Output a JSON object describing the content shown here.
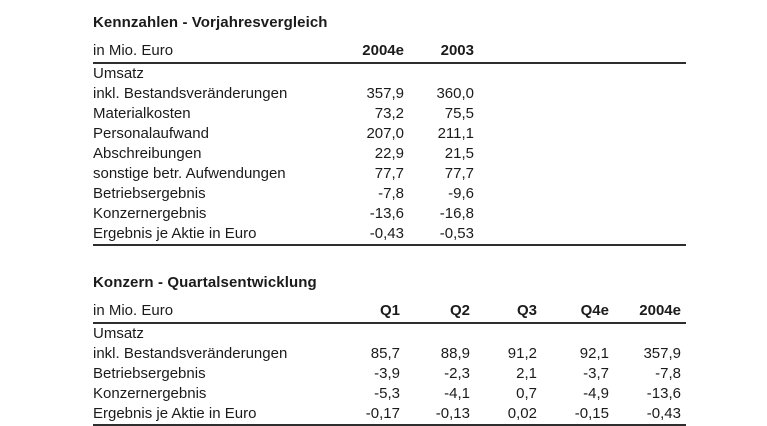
{
  "table1": {
    "title": "Kennzahlen - Vorjahresvergleich",
    "unit_label": "in Mio. Euro",
    "columns": [
      "2004e",
      "2003"
    ],
    "rows": [
      {
        "label": "Umsatz",
        "values": [
          "",
          ""
        ]
      },
      {
        "label": "inkl. Bestandsveränderungen",
        "values": [
          "357,9",
          "360,0"
        ]
      },
      {
        "label": "Materialkosten",
        "values": [
          "73,2",
          "75,5"
        ]
      },
      {
        "label": "Personalaufwand",
        "values": [
          "207,0",
          "211,1"
        ]
      },
      {
        "label": "Abschreibungen",
        "values": [
          "22,9",
          "21,5"
        ]
      },
      {
        "label": "sonstige betr. Aufwendungen",
        "values": [
          "77,7",
          "77,7"
        ]
      },
      {
        "label": "Betriebsergebnis",
        "values": [
          "-7,8",
          "-9,6"
        ]
      },
      {
        "label": "Konzernergebnis",
        "values": [
          "-13,6",
          "-16,8"
        ]
      },
      {
        "label": "Ergebnis je Aktie in Euro",
        "values": [
          "-0,43",
          "-0,53"
        ]
      }
    ]
  },
  "table2": {
    "title": "Konzern - Quartalsentwicklung",
    "unit_label": "in Mio. Euro",
    "columns": [
      "Q1",
      "Q2",
      "Q3",
      "Q4e",
      "2004e"
    ],
    "rows": [
      {
        "label": "Umsatz",
        "values": [
          "",
          "",
          "",
          "",
          ""
        ]
      },
      {
        "label": "inkl. Bestandsveränderungen",
        "values": [
          "85,7",
          "88,9",
          "91,2",
          "92,1",
          "357,9"
        ]
      },
      {
        "label": "Betriebsergebnis",
        "values": [
          "-3,9",
          "-2,3",
          "2,1",
          "-3,7",
          "-7,8"
        ]
      },
      {
        "label": "Konzernergebnis",
        "values": [
          "-5,3",
          "-4,1",
          "0,7",
          "-4,9",
          "-13,6"
        ]
      },
      {
        "label": "Ergebnis je Aktie in Euro",
        "values": [
          "-0,17",
          "-0,13",
          "0,02",
          "-0,15",
          "-0,43"
        ]
      }
    ]
  },
  "colors": {
    "text": "#1b1b1b",
    "rule": "#2e2e2e",
    "background": "#ffffff"
  }
}
